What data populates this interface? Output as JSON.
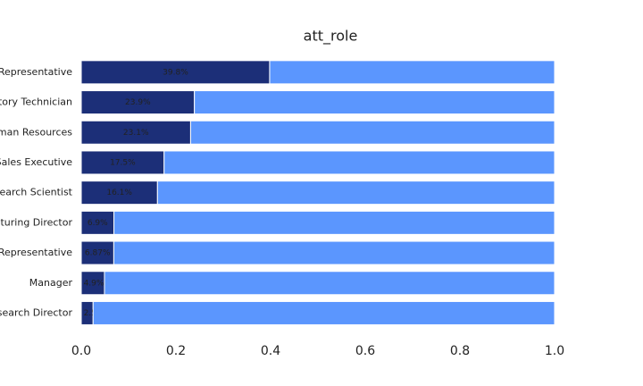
{
  "chart_data": {
    "type": "stacked-barh",
    "title": "att_role",
    "categories": [
      "Sales Representative",
      "Laboratory Technician",
      "Human Resources",
      "Sales Executive",
      "Research Scientist",
      "Manufacturing Director",
      "Healthcare Representative",
      "Manager",
      "Research Director"
    ],
    "series": [
      {
        "color": "#1c2f78",
        "values": [
          0.398,
          0.239,
          0.231,
          0.175,
          0.161,
          0.069,
          0.0687,
          0.049,
          0.025
        ],
        "value_labels": [
          "39.8%",
          "23.9%",
          "23.1%",
          "17.5%",
          "16.1%",
          "6.9%",
          "6.87%",
          "4.9%",
          "2.5%"
        ]
      },
      {
        "color": "#5b96fe",
        "values": [
          0.602,
          0.761,
          0.769,
          0.825,
          0.839,
          0.931,
          0.9313,
          0.951,
          0.975
        ]
      }
    ],
    "xlim": [
      0,
      1
    ],
    "xticks": [
      {
        "value": 0,
        "label": "0.0"
      },
      {
        "value": 0.2,
        "label": "0.2"
      },
      {
        "value": 0.4,
        "label": "0.4"
      },
      {
        "value": 0.6,
        "label": "0.6"
      },
      {
        "value": 0.8,
        "label": "0.8"
      },
      {
        "value": 1,
        "label": "1.0"
      }
    ]
  }
}
